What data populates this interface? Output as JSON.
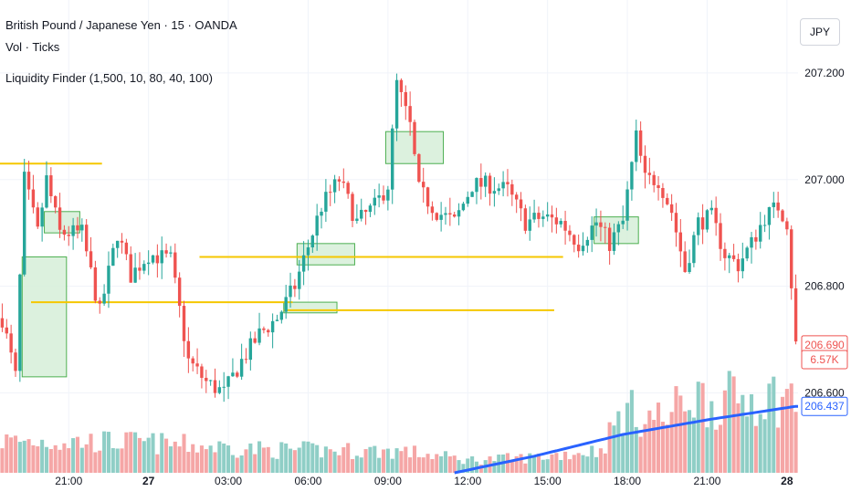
{
  "legend": {
    "symbol": "British Pound / Japanese Yen · 15 · OANDA",
    "volume": "Vol · Ticks",
    "indicator": "Liquidity Finder (1,500, 10, 80, 40, 100)"
  },
  "currency_button": "JPY",
  "chart_data": {
    "type": "candlestick",
    "title": "British Pound / Japanese Yen · 15 · OANDA",
    "xlabel": "",
    "ylabel": "",
    "ylim": [
      206.45,
      207.33
    ],
    "y_ticks": [
      "207.200",
      "207.000",
      "206.800",
      "206.600"
    ],
    "x_ticks": [
      {
        "label": "21:00",
        "bar": 15,
        "bold": false
      },
      {
        "label": "27",
        "bar": 33,
        "bold": true
      },
      {
        "label": "03:00",
        "bar": 51,
        "bold": false
      },
      {
        "label": "06:00",
        "bar": 69,
        "bold": false
      },
      {
        "label": "09:00",
        "bar": 87,
        "bold": false
      },
      {
        "label": "12:00",
        "bar": 105,
        "bold": false
      },
      {
        "label": "15:00",
        "bar": 123,
        "bold": false
      },
      {
        "label": "18:00",
        "bar": 141,
        "bold": false
      },
      {
        "label": "21:00",
        "bar": 159,
        "bold": false
      },
      {
        "label": "28",
        "bar": 177,
        "bold": true
      }
    ],
    "bar_count": 180,
    "price_anchors": [
      [
        0,
        206.74
      ],
      [
        3,
        206.63
      ],
      [
        5,
        207.0
      ],
      [
        8,
        206.9
      ],
      [
        10,
        207.0
      ],
      [
        13,
        206.9
      ],
      [
        18,
        206.9
      ],
      [
        22,
        206.75
      ],
      [
        26,
        206.9
      ],
      [
        29,
        206.82
      ],
      [
        33,
        206.86
      ],
      [
        38,
        206.85
      ],
      [
        42,
        206.66
      ],
      [
        46,
        206.62
      ],
      [
        50,
        206.6
      ],
      [
        54,
        206.66
      ],
      [
        58,
        206.71
      ],
      [
        62,
        206.74
      ],
      [
        66,
        206.8
      ],
      [
        68,
        206.85
      ],
      [
        72,
        206.95
      ],
      [
        76,
        207.0
      ],
      [
        80,
        206.92
      ],
      [
        84,
        206.95
      ],
      [
        87,
        206.99
      ],
      [
        89,
        207.18
      ],
      [
        92,
        207.1
      ],
      [
        94,
        206.98
      ],
      [
        98,
        206.94
      ],
      [
        102,
        206.92
      ],
      [
        106,
        206.99
      ],
      [
        110,
        206.99
      ],
      [
        114,
        206.98
      ],
      [
        118,
        206.92
      ],
      [
        122,
        206.93
      ],
      [
        126,
        206.92
      ],
      [
        130,
        206.88
      ],
      [
        134,
        206.92
      ],
      [
        137,
        206.88
      ],
      [
        140,
        206.92
      ],
      [
        143,
        207.08
      ],
      [
        145,
        207.0
      ],
      [
        148,
        207.0
      ],
      [
        151,
        206.94
      ],
      [
        154,
        206.83
      ],
      [
        157,
        206.92
      ],
      [
        160,
        206.93
      ],
      [
        163,
        206.86
      ],
      [
        166,
        206.84
      ],
      [
        169,
        206.88
      ],
      [
        172,
        206.93
      ],
      [
        175,
        206.95
      ],
      [
        177,
        206.92
      ],
      [
        179,
        206.69
      ]
    ],
    "volume_anchors": [
      [
        0,
        0.25
      ],
      [
        30,
        0.24
      ],
      [
        60,
        0.18
      ],
      [
        90,
        0.17
      ],
      [
        105,
        0.1
      ],
      [
        120,
        0.12
      ],
      [
        135,
        0.18
      ],
      [
        140,
        0.48
      ],
      [
        150,
        0.42
      ],
      [
        155,
        0.62
      ],
      [
        160,
        0.55
      ],
      [
        170,
        0.6
      ],
      [
        179,
        0.58
      ]
    ],
    "volume_ma_label": "206.437",
    "volume_ma_anchors": [
      [
        102,
        0.0
      ],
      [
        120,
        0.13
      ],
      [
        140,
        0.3
      ],
      [
        160,
        0.42
      ],
      [
        179,
        0.52
      ]
    ],
    "last_price": "206.690",
    "last_volume": "6.57K",
    "liquidity_lines": [
      {
        "price": 207.03,
        "from_bar": 0,
        "to_bar": 23
      },
      {
        "price": 206.855,
        "from_bar": 45,
        "to_bar": 127
      },
      {
        "price": 206.77,
        "from_bar": 7,
        "to_bar": 66
      },
      {
        "price": 206.755,
        "from_bar": 64,
        "to_bar": 125
      }
    ],
    "zones": [
      {
        "price_top": 206.94,
        "price_bottom": 206.9,
        "from_bar": 10,
        "to_bar": 18
      },
      {
        "price_top": 206.855,
        "price_bottom": 206.63,
        "from_bar": 5,
        "to_bar": 15
      },
      {
        "price_top": 207.09,
        "price_bottom": 207.03,
        "from_bar": 87,
        "to_bar": 100
      },
      {
        "price_top": 206.88,
        "price_bottom": 206.84,
        "from_bar": 67,
        "to_bar": 80
      },
      {
        "price_top": 206.77,
        "price_bottom": 206.75,
        "from_bar": 64,
        "to_bar": 76
      },
      {
        "price_top": 206.93,
        "price_bottom": 206.88,
        "from_bar": 134,
        "to_bar": 144
      }
    ],
    "colors": {
      "up": "#26a69a",
      "down": "#ef5350",
      "volume_up": "#8fcec6",
      "volume_down": "#f5a6a6",
      "liquidity_line": "#f5c700",
      "zone_fill": "#d6efd8",
      "zone_stroke": "#4caf50",
      "volume_ma": "#2962ff",
      "grid": "#f0f3fa",
      "axis_text": "#131722"
    }
  }
}
